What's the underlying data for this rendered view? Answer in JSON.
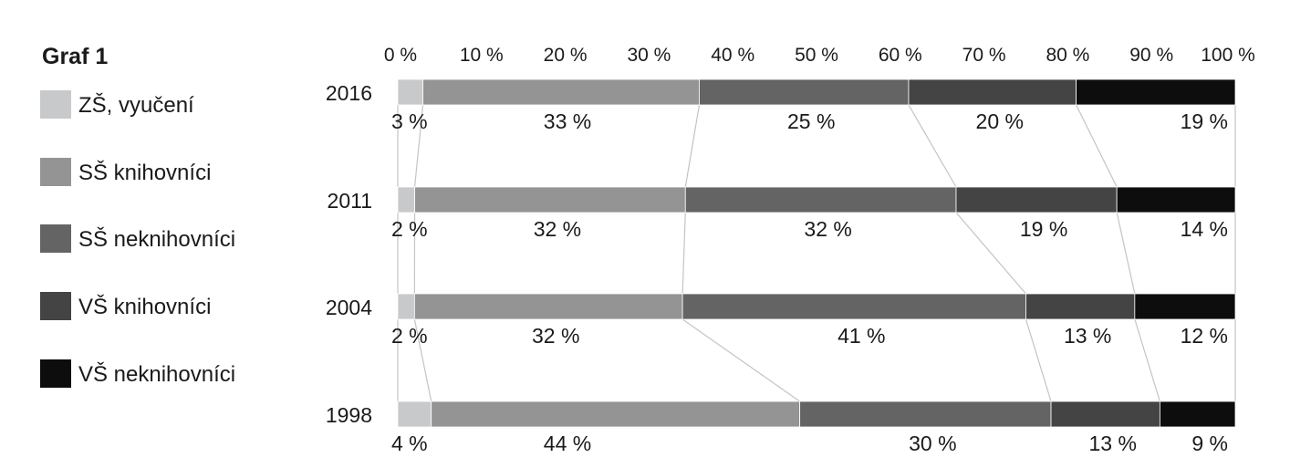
{
  "chart_data": {
    "type": "bar",
    "stacked": true,
    "orientation": "horizontal",
    "title": "Graf 1",
    "xlim": [
      0,
      100
    ],
    "x_ticks": [
      "0 %",
      "10 %",
      "20 %",
      "30 %",
      "40 %",
      "50 %",
      "60 %",
      "70 %",
      "80 %",
      "90 %",
      "100 %"
    ],
    "categories": [
      "2016",
      "2011",
      "2004",
      "1998"
    ],
    "series": [
      {
        "name": "ZŠ, vyučení",
        "color": "#c8c9cb",
        "values": [
          3,
          2,
          2,
          4
        ],
        "labels": [
          "3 %",
          "2 %",
          "2 %",
          "4 %"
        ]
      },
      {
        "name": "SŠ knihovníci",
        "color": "#949494",
        "values": [
          33,
          32,
          32,
          44
        ],
        "labels": [
          "33 %",
          "32 %",
          "32 %",
          "44 %"
        ]
      },
      {
        "name": "SŠ neknihovníci",
        "color": "#646464",
        "values": [
          25,
          32,
          41,
          30
        ],
        "labels": [
          "25 %",
          "32 %",
          "41 %",
          "30 %"
        ]
      },
      {
        "name": "VŠ knihovníci",
        "color": "#444444",
        "values": [
          20,
          19,
          13,
          13
        ],
        "labels": [
          "20 %",
          "19 %",
          "13 %",
          "13 %"
        ]
      },
      {
        "name": "VŠ neknihovníci",
        "color": "#0d0d0d",
        "values": [
          19,
          14,
          12,
          9
        ],
        "labels": [
          "19 %",
          "14 %",
          "12 %",
          "9 %"
        ]
      }
    ],
    "legend": "left",
    "grid": false,
    "connector_lines": true
  }
}
